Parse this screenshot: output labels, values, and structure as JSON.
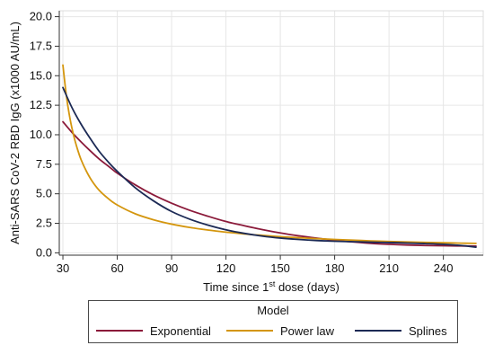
{
  "chart_data": {
    "type": "line",
    "title": "",
    "xlabel_prefix": "Time since 1",
    "xlabel_sup": "st",
    "xlabel_suffix": " dose (days)",
    "ylabel": "Anti-SARS CoV-2 RBD IgG (x1000 AU/mL)",
    "xlim": [
      28,
      262
    ],
    "ylim": [
      -0.2,
      20.5
    ],
    "x_ticks": [
      "30",
      "60",
      "90",
      "120",
      "150",
      "180",
      "210",
      "240"
    ],
    "y_ticks": [
      "0.0",
      "2.5",
      "5.0",
      "7.5",
      "10.0",
      "12.5",
      "15.0",
      "17.5",
      "20.0"
    ],
    "grid": true,
    "legend_title": "Model",
    "legend_placement": "bottom",
    "series": [
      {
        "name": "Exponential",
        "color": "#8b1a3a",
        "x": [
          30,
          35,
          40,
          45,
          50,
          55,
          60,
          70,
          80,
          90,
          100,
          110,
          120,
          130,
          140,
          150,
          160,
          170,
          180,
          190,
          200,
          210,
          220,
          230,
          240,
          250,
          258
        ],
        "y": [
          11.1,
          10.2,
          9.4,
          8.65,
          7.95,
          7.35,
          6.75,
          5.75,
          4.9,
          4.2,
          3.6,
          3.1,
          2.65,
          2.3,
          1.97,
          1.68,
          1.44,
          1.24,
          1.06,
          0.92,
          0.8,
          0.72,
          0.66,
          0.62,
          0.6,
          0.58,
          0.57
        ]
      },
      {
        "name": "Power law",
        "color": "#d4960e",
        "x": [
          30,
          32,
          34,
          36,
          38,
          40,
          43,
          46,
          50,
          55,
          60,
          70,
          80,
          90,
          100,
          110,
          120,
          130,
          140,
          150,
          160,
          170,
          180,
          190,
          200,
          210,
          220,
          230,
          240,
          250,
          258
        ],
        "y": [
          15.9,
          13.2,
          11.3,
          9.9,
          8.8,
          7.9,
          6.9,
          6.1,
          5.3,
          4.6,
          4.05,
          3.3,
          2.8,
          2.43,
          2.15,
          1.93,
          1.75,
          1.6,
          1.48,
          1.37,
          1.28,
          1.2,
          1.13,
          1.07,
          1.01,
          0.96,
          0.92,
          0.88,
          0.85,
          0.82,
          0.8
        ]
      },
      {
        "name": "Splines",
        "color": "#1c2a55",
        "x": [
          30,
          35,
          40,
          45,
          50,
          55,
          60,
          70,
          80,
          90,
          100,
          110,
          120,
          130,
          140,
          150,
          160,
          170,
          180,
          190,
          200,
          210,
          220,
          230,
          240,
          250,
          258
        ],
        "y": [
          14.0,
          12.3,
          10.9,
          9.7,
          8.6,
          7.7,
          6.9,
          5.5,
          4.4,
          3.5,
          2.85,
          2.35,
          1.95,
          1.65,
          1.42,
          1.25,
          1.13,
          1.04,
          0.98,
          0.94,
          0.9,
          0.87,
          0.83,
          0.78,
          0.72,
          0.62,
          0.48
        ]
      }
    ]
  }
}
